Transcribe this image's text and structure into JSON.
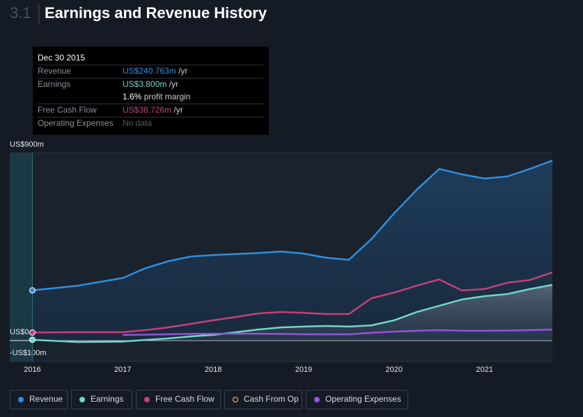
{
  "header": {
    "number": "3.1",
    "title": "Earnings and Revenue History"
  },
  "tooltip": {
    "date": "Dec 30 2015",
    "revenue": {
      "label": "Revenue",
      "value": "US$240.763m",
      "unit": "/yr"
    },
    "earnings": {
      "label": "Earnings",
      "value": "US$3.800m",
      "unit": "/yr",
      "margin": "1.6%",
      "margin_label": "profit margin"
    },
    "fcf": {
      "label": "Free Cash Flow",
      "value": "US$38.726m",
      "unit": "/yr"
    },
    "opex": {
      "label": "Operating Expenses",
      "value": "No data"
    }
  },
  "chart_data": {
    "type": "area",
    "x": [
      2016,
      2016.5,
      2017,
      2017.25,
      2017.5,
      2017.75,
      2018,
      2018.25,
      2018.5,
      2018.75,
      2019,
      2019.25,
      2019.5,
      2019.75,
      2020,
      2020.25,
      2020.5,
      2020.75,
      2021,
      2021.25,
      2021.5,
      2021.75
    ],
    "series": [
      {
        "name": "Revenue",
        "color": "#2f8fde",
        "fill": true,
        "values": [
          240.763,
          263,
          300,
          347,
          380,
          403,
          410,
          415,
          420,
          427,
          417,
          397,
          387,
          487,
          610,
          723,
          823,
          797,
          777,
          787,
          823,
          863
        ]
      },
      {
        "name": "Earnings",
        "color": "#6fd6c8",
        "fill": true,
        "values": [
          3.8,
          -7,
          -5,
          3,
          10,
          20,
          27,
          40,
          53,
          63,
          67,
          70,
          67,
          73,
          97,
          137,
          167,
          197,
          213,
          223,
          247,
          267
        ]
      },
      {
        "name": "Free Cash Flow",
        "color": "#c2427a",
        "fill": false,
        "values": [
          38.726,
          40,
          40,
          50,
          63,
          80,
          97,
          113,
          130,
          137,
          133,
          127,
          127,
          203,
          230,
          263,
          293,
          240,
          247,
          277,
          290,
          327
        ]
      },
      {
        "name": "Cash From Op",
        "color": "#e0a458",
        "fill": false,
        "hollow": true,
        "values": [
          null,
          null,
          null,
          null,
          null,
          null,
          null,
          null,
          null,
          null,
          null,
          null,
          null,
          null,
          null,
          null,
          null,
          null,
          null,
          null,
          null,
          null
        ]
      },
      {
        "name": "Operating Expenses",
        "color": "#9b4fe0",
        "fill": false,
        "values": [
          null,
          null,
          27,
          28,
          30,
          32,
          33,
          33,
          33,
          32,
          30,
          30,
          30,
          37,
          43,
          47,
          50,
          47,
          47,
          48,
          50,
          53
        ]
      }
    ],
    "xlim": [
      2015.75,
      2021.75
    ],
    "xticks": [
      2016,
      2017,
      2018,
      2019,
      2020,
      2021
    ],
    "ylim": [
      -100,
      900
    ],
    "yticks": [
      {
        "value": 900,
        "label": "US$900m"
      },
      {
        "value": 0,
        "label": "US$0"
      },
      {
        "value": -100,
        "label": "-US$100m"
      }
    ],
    "grid": true
  }
}
